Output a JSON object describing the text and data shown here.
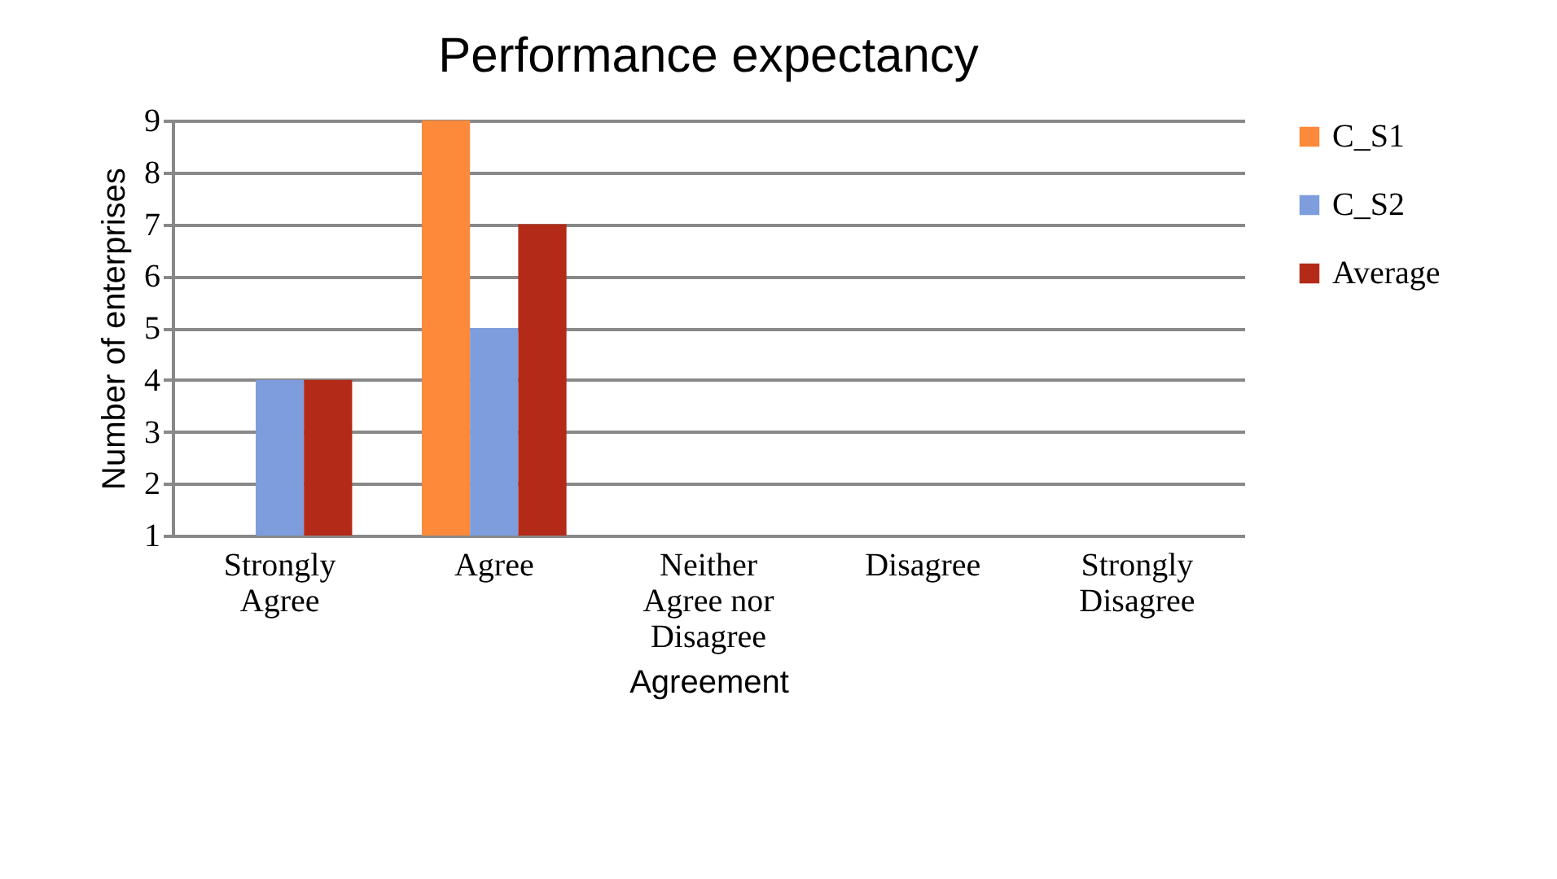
{
  "chart_data": {
    "type": "bar",
    "title": "Performance expectancy",
    "xlabel": "Agreement",
    "ylabel": "Number of enterprises",
    "categories": [
      "Strongly Agree",
      "Agree",
      "Neither Agree nor Disagree",
      "Disagree",
      "Strongly Disagree"
    ],
    "series": [
      {
        "name": "C_S1",
        "color": "#fd8a3a",
        "values": [
          null,
          9,
          null,
          null,
          null
        ]
      },
      {
        "name": "C_S2",
        "color": "#7e9ddc",
        "values": [
          4,
          5,
          null,
          null,
          null
        ]
      },
      {
        "name": "Average",
        "color": "#b32b18",
        "values": [
          4,
          7,
          null,
          null,
          null
        ]
      }
    ],
    "ylim": [
      1,
      9
    ],
    "yticks": [
      1,
      2,
      3,
      4,
      5,
      6,
      7,
      8,
      9
    ],
    "grid": "y",
    "legend": "right"
  }
}
